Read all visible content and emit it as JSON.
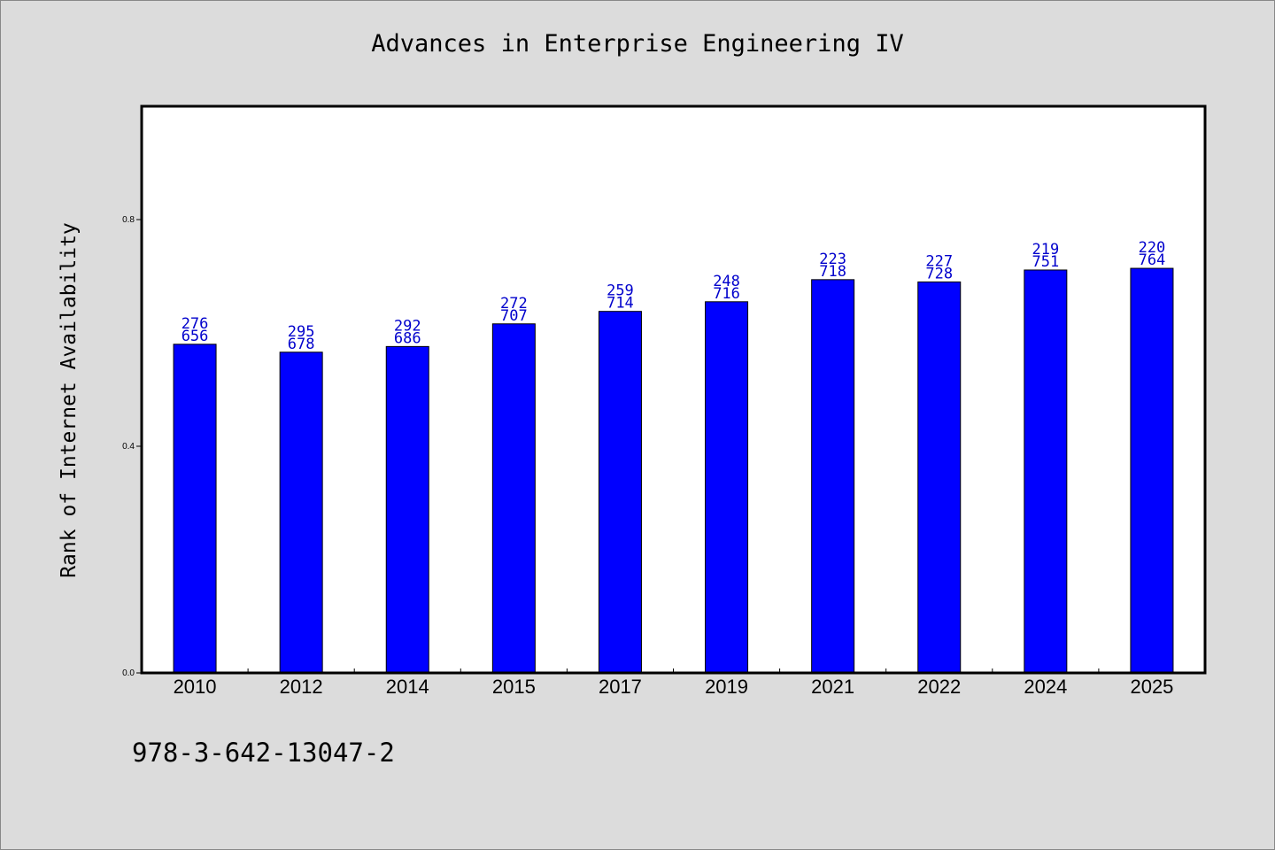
{
  "page": {
    "isbn": "978-3-642-13047-2"
  },
  "colors": {
    "background": "#dcdcdc",
    "plot_background": "#ffffff",
    "bar": "#0000ff",
    "label": "#0000cc",
    "axis": "#000000"
  },
  "chart_data": {
    "type": "bar",
    "title": "Advances in Enterprise Engineering IV",
    "xlabel": "",
    "ylabel": "Rank of Internet Availability",
    "categories": [
      "2010",
      "2012",
      "2014",
      "2015",
      "2017",
      "2019",
      "2021",
      "2022",
      "2024",
      "2025"
    ],
    "values": [
      0.58,
      0.566,
      0.576,
      0.616,
      0.638,
      0.655,
      0.694,
      0.69,
      0.711,
      0.714
    ],
    "bar_labels": [
      [
        "276",
        "656"
      ],
      [
        "295",
        "678"
      ],
      [
        "292",
        "686"
      ],
      [
        "272",
        "707"
      ],
      [
        "259",
        "714"
      ],
      [
        "248",
        "716"
      ],
      [
        "223",
        "718"
      ],
      [
        "227",
        "728"
      ],
      [
        "219",
        "751"
      ],
      [
        "220",
        "764"
      ]
    ],
    "ylim": [
      0,
      1.0
    ],
    "yticks": [
      0.0,
      0.4,
      0.8
    ],
    "ytick_labels": [
      "0.0",
      "0.4",
      "0.8"
    ],
    "grid": false,
    "legend": "none"
  }
}
